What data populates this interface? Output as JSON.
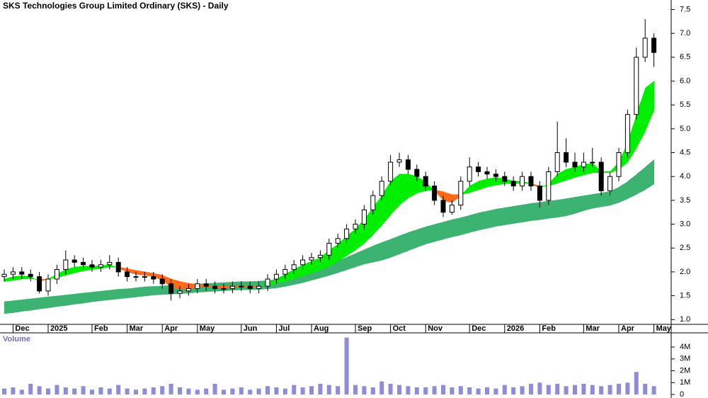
{
  "chart_data": [
    {
      "type": "candlestick",
      "title": "SKS Technologies Group Limited Ordinary (SKS) - Daily",
      "categories": [
        null,
        "Dec",
        null,
        null,
        null,
        "2025",
        null,
        null,
        null,
        null,
        "Feb",
        null,
        null,
        null,
        "Mar",
        null,
        null,
        null,
        "Apr",
        null,
        null,
        null,
        "May",
        null,
        null,
        null,
        null,
        "Jun",
        null,
        null,
        null,
        "Jul",
        null,
        null,
        null,
        "Aug",
        null,
        null,
        null,
        null,
        "Sep",
        null,
        null,
        null,
        "Oct",
        null,
        null,
        null,
        "Nov",
        null,
        null,
        null,
        null,
        "Dec",
        null,
        null,
        null,
        "2026",
        null,
        null,
        null,
        "Feb",
        null,
        null,
        null,
        null,
        "Mar",
        null,
        null,
        null,
        "Apr",
        null,
        null,
        null,
        "May"
      ],
      "open": [
        1.9,
        1.95,
        2.0,
        1.95,
        1.9,
        1.6,
        1.85,
        2.05,
        2.25,
        2.2,
        2.15,
        2.1,
        2.15,
        2.2,
        2.0,
        1.9,
        1.9,
        1.9,
        1.85,
        1.75,
        1.55,
        1.6,
        1.65,
        1.75,
        1.7,
        1.65,
        1.65,
        1.7,
        1.7,
        1.65,
        1.7,
        1.85,
        1.95,
        2.05,
        2.15,
        2.25,
        2.3,
        2.35,
        2.6,
        2.7,
        2.9,
        3.0,
        3.3,
        3.6,
        3.9,
        4.3,
        4.35,
        4.15,
        4.0,
        3.8,
        3.5,
        3.25,
        3.4,
        3.9,
        4.2,
        4.1,
        4.05,
        4.0,
        3.9,
        3.8,
        4.0,
        3.8,
        3.5,
        4.1,
        4.5,
        4.3,
        4.2,
        4.3,
        4.3,
        3.7,
        4.0,
        4.5,
        5.3,
        6.5,
        6.9
      ],
      "high": [
        2.05,
        2.1,
        2.1,
        2.05,
        2.0,
        1.95,
        2.15,
        2.45,
        2.35,
        2.3,
        2.25,
        2.25,
        2.35,
        2.3,
        2.1,
        2.0,
        2.0,
        2.0,
        1.95,
        1.85,
        1.7,
        1.75,
        1.85,
        1.85,
        1.8,
        1.75,
        1.8,
        1.8,
        1.8,
        1.8,
        1.95,
        2.05,
        2.15,
        2.25,
        2.35,
        2.4,
        2.45,
        2.7,
        2.8,
        3.0,
        3.1,
        3.4,
        3.7,
        4.0,
        4.45,
        4.5,
        4.45,
        4.25,
        4.1,
        3.9,
        3.6,
        3.5,
        4.0,
        4.4,
        4.3,
        4.2,
        4.15,
        4.1,
        4.0,
        4.1,
        4.1,
        3.9,
        4.2,
        5.15,
        4.8,
        4.5,
        4.5,
        4.6,
        4.4,
        4.1,
        4.6,
        5.4,
        6.7,
        7.3,
        7.0
      ],
      "low": [
        1.8,
        1.85,
        1.85,
        1.8,
        1.55,
        1.5,
        1.75,
        1.95,
        2.1,
        2.05,
        2.0,
        2.0,
        2.05,
        1.9,
        1.8,
        1.8,
        1.8,
        1.75,
        1.65,
        1.4,
        1.45,
        1.5,
        1.55,
        1.6,
        1.55,
        1.55,
        1.55,
        1.6,
        1.55,
        1.55,
        1.6,
        1.75,
        1.85,
        1.95,
        2.05,
        2.15,
        2.2,
        2.25,
        2.5,
        2.6,
        2.8,
        2.9,
        3.2,
        3.5,
        3.8,
        4.2,
        4.05,
        3.9,
        3.7,
        3.4,
        3.15,
        3.2,
        3.3,
        3.8,
        4.0,
        3.95,
        3.9,
        3.8,
        3.7,
        3.7,
        3.7,
        3.35,
        3.4,
        4.0,
        4.2,
        4.1,
        4.1,
        4.2,
        3.6,
        3.6,
        3.9,
        4.4,
        5.2,
        6.4,
        6.3
      ],
      "close": [
        1.95,
        2.0,
        1.95,
        1.9,
        1.6,
        1.85,
        2.05,
        2.25,
        2.2,
        2.15,
        2.1,
        2.15,
        2.2,
        2.0,
        1.9,
        1.9,
        1.9,
        1.85,
        1.75,
        1.55,
        1.6,
        1.65,
        1.75,
        1.7,
        1.65,
        1.65,
        1.7,
        1.7,
        1.65,
        1.7,
        1.85,
        1.95,
        2.05,
        2.15,
        2.25,
        2.3,
        2.35,
        2.6,
        2.7,
        2.9,
        3.0,
        3.3,
        3.6,
        3.9,
        4.3,
        4.35,
        4.15,
        4.0,
        3.8,
        3.5,
        3.25,
        3.4,
        3.9,
        4.2,
        4.1,
        4.05,
        4.0,
        3.9,
        3.8,
        4.0,
        3.8,
        3.5,
        4.1,
        4.5,
        4.3,
        4.2,
        4.3,
        4.3,
        3.7,
        4.0,
        4.5,
        5.3,
        6.5,
        6.9,
        6.6
      ],
      "up_color": "#ffffff",
      "down_color": "#000000",
      "long_band": {
        "color": "#3cb371",
        "upper": [
          1.38,
          1.4,
          1.42,
          1.44,
          1.46,
          1.48,
          1.5,
          1.52,
          1.54,
          1.56,
          1.58,
          1.6,
          1.62,
          1.64,
          1.65,
          1.67,
          1.69,
          1.7,
          1.71,
          1.72,
          1.73,
          1.74,
          1.75,
          1.76,
          1.77,
          1.78,
          1.79,
          1.8,
          1.8,
          1.81,
          1.82,
          1.85,
          1.89,
          1.93,
          1.98,
          2.03,
          2.08,
          2.15,
          2.23,
          2.31,
          2.39,
          2.47,
          2.55,
          2.62,
          2.69,
          2.76,
          2.83,
          2.89,
          2.95,
          3.0,
          3.05,
          3.1,
          3.14,
          3.19,
          3.24,
          3.28,
          3.32,
          3.35,
          3.38,
          3.41,
          3.44,
          3.46,
          3.49,
          3.51,
          3.54,
          3.57,
          3.6,
          3.63,
          3.66,
          3.69,
          3.78,
          3.9,
          4.05,
          4.2,
          4.36
        ],
        "lower": [
          1.12,
          1.14,
          1.17,
          1.19,
          1.22,
          1.24,
          1.27,
          1.29,
          1.32,
          1.34,
          1.37,
          1.39,
          1.41,
          1.43,
          1.45,
          1.47,
          1.49,
          1.51,
          1.52,
          1.53,
          1.54,
          1.55,
          1.57,
          1.58,
          1.59,
          1.6,
          1.61,
          1.62,
          1.62,
          1.63,
          1.64,
          1.66,
          1.69,
          1.73,
          1.77,
          1.82,
          1.87,
          1.92,
          1.98,
          2.04,
          2.1,
          2.16,
          2.2,
          2.24,
          2.3,
          2.37,
          2.44,
          2.51,
          2.58,
          2.63,
          2.68,
          2.73,
          2.77,
          2.82,
          2.87,
          2.91,
          2.95,
          2.98,
          3.01,
          3.04,
          3.07,
          3.09,
          3.12,
          3.14,
          3.17,
          3.22,
          3.28,
          3.33,
          3.36,
          3.39,
          3.45,
          3.53,
          3.62,
          3.72,
          3.84
        ]
      },
      "short_band": {
        "color": "#00ee00",
        "down_color": "#ff6a1a",
        "fast": [
          1.85,
          1.9,
          1.92,
          1.9,
          1.8,
          1.85,
          1.95,
          2.05,
          2.1,
          2.12,
          2.12,
          2.13,
          2.15,
          2.08,
          2.0,
          1.95,
          1.93,
          1.9,
          1.82,
          1.68,
          1.64,
          1.64,
          1.68,
          1.69,
          1.67,
          1.66,
          1.68,
          1.69,
          1.68,
          1.69,
          1.76,
          1.85,
          1.95,
          2.05,
          2.15,
          2.22,
          2.3,
          2.45,
          2.58,
          2.75,
          2.9,
          3.1,
          3.35,
          3.6,
          3.9,
          4.05,
          4.05,
          4.0,
          3.88,
          3.7,
          3.5,
          3.45,
          3.6,
          3.8,
          3.9,
          3.95,
          3.98,
          3.95,
          3.9,
          3.9,
          3.85,
          3.75,
          3.85,
          4.05,
          4.15,
          4.2,
          4.25,
          4.28,
          4.1,
          4.1,
          4.3,
          4.7,
          5.3,
          5.85,
          6.0
        ],
        "slow": [
          1.8,
          1.82,
          1.85,
          1.86,
          1.84,
          1.85,
          1.88,
          1.93,
          1.98,
          2.02,
          2.05,
          2.07,
          2.1,
          2.1,
          2.07,
          2.03,
          2.0,
          1.97,
          1.93,
          1.85,
          1.8,
          1.76,
          1.74,
          1.72,
          1.71,
          1.7,
          1.7,
          1.7,
          1.7,
          1.7,
          1.72,
          1.76,
          1.8,
          1.86,
          1.92,
          1.98,
          2.04,
          2.12,
          2.22,
          2.34,
          2.46,
          2.6,
          2.78,
          2.98,
          3.2,
          3.4,
          3.55,
          3.65,
          3.7,
          3.72,
          3.68,
          3.62,
          3.62,
          3.66,
          3.72,
          3.78,
          3.82,
          3.85,
          3.85,
          3.86,
          3.85,
          3.8,
          3.8,
          3.86,
          3.92,
          3.98,
          4.03,
          4.08,
          4.08,
          4.08,
          4.15,
          4.3,
          4.6,
          4.95,
          5.4
        ]
      },
      "ylim": [
        0.9,
        7.7
      ],
      "yticks": [
        {
          "value": 1,
          "label": "1.0"
        },
        1.5,
        {
          "value": 2,
          "label": "2.0"
        },
        2.5,
        {
          "value": 3,
          "label": "3.0"
        },
        3.5,
        {
          "value": 4,
          "label": "4.0"
        },
        4.5,
        {
          "value": 5,
          "label": "5.0"
        },
        5.5,
        {
          "value": 6,
          "label": "6.0"
        },
        6.5,
        {
          "value": 7,
          "label": "7.0"
        },
        7.5
      ]
    },
    {
      "type": "bar",
      "title": "Volume",
      "color": "#8c8cd8",
      "values": [
        500000,
        600000,
        400000,
        900000,
        700000,
        500000,
        800000,
        600000,
        500000,
        700000,
        400000,
        600000,
        500000,
        800000,
        500000,
        400000,
        500000,
        600000,
        700000,
        900000,
        600000,
        500000,
        400000,
        500000,
        900000,
        400000,
        500000,
        600000,
        400000,
        500000,
        700000,
        600000,
        500000,
        800000,
        600000,
        700000,
        900000,
        800000,
        700000,
        4800000,
        800000,
        700000,
        600000,
        1100000,
        900000,
        800000,
        700000,
        600000,
        600000,
        700000,
        800000,
        600000,
        700000,
        600000,
        500000,
        600000,
        500000,
        800000,
        600000,
        700000,
        900000,
        1000000,
        800000,
        900000,
        700000,
        800000,
        900000,
        800000,
        700000,
        800000,
        900000,
        1000000,
        1900000,
        900000,
        700000
      ],
      "ylim": [
        0,
        5200000
      ],
      "yticks": [
        {
          "value": 4000000,
          "label": "4M"
        },
        {
          "value": 3000000,
          "label": "3M"
        },
        {
          "value": 2000000,
          "label": "2M"
        },
        {
          "value": 1000000,
          "label": "1M"
        },
        0
      ]
    }
  ]
}
